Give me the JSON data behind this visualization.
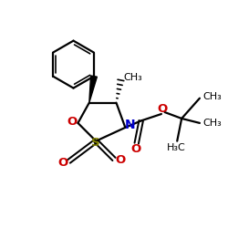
{
  "bg_color": "#ffffff",
  "line_color": "#000000",
  "N_color": "#0000cc",
  "O_color": "#cc0000",
  "S_color": "#808000",
  "bond_lw": 1.6,
  "figsize": [
    2.5,
    2.5
  ],
  "dpi": 100,
  "xlim": [
    0,
    10
  ],
  "ylim": [
    0,
    10
  ]
}
